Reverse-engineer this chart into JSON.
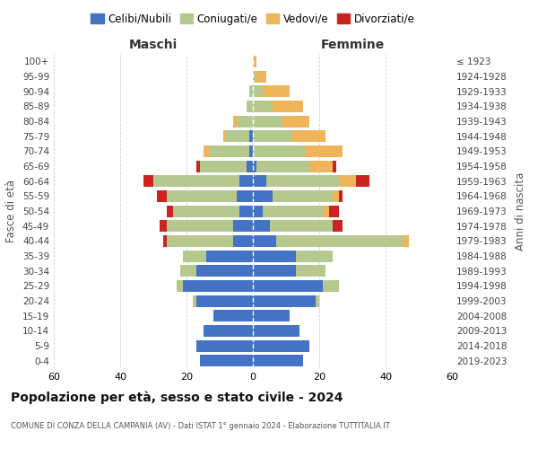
{
  "age_groups": [
    "0-4",
    "5-9",
    "10-14",
    "15-19",
    "20-24",
    "25-29",
    "30-34",
    "35-39",
    "40-44",
    "45-49",
    "50-54",
    "55-59",
    "60-64",
    "65-69",
    "70-74",
    "75-79",
    "80-84",
    "85-89",
    "90-94",
    "95-99",
    "100+"
  ],
  "birth_years": [
    "2019-2023",
    "2014-2018",
    "2009-2013",
    "2004-2008",
    "1999-2003",
    "1994-1998",
    "1989-1993",
    "1984-1988",
    "1979-1983",
    "1974-1978",
    "1969-1973",
    "1964-1968",
    "1959-1963",
    "1954-1958",
    "1949-1953",
    "1944-1948",
    "1939-1943",
    "1934-1938",
    "1929-1933",
    "1924-1928",
    "≤ 1923"
  ],
  "colors": {
    "celibi": "#4472c4",
    "coniugati": "#b5c98e",
    "vedovi": "#f0b55a",
    "divorziati": "#cc2222"
  },
  "maschi": {
    "celibi": [
      16,
      17,
      15,
      12,
      17,
      21,
      17,
      14,
      6,
      6,
      4,
      5,
      4,
      2,
      1,
      1,
      0,
      0,
      0,
      0,
      0
    ],
    "coniugati": [
      0,
      0,
      0,
      0,
      1,
      2,
      5,
      7,
      20,
      20,
      20,
      21,
      26,
      14,
      12,
      7,
      5,
      2,
      1,
      0,
      0
    ],
    "vedovi": [
      0,
      0,
      0,
      0,
      0,
      0,
      0,
      0,
      0,
      0,
      0,
      0,
      0,
      0,
      2,
      1,
      1,
      0,
      0,
      0,
      0
    ],
    "divorziati": [
      0,
      0,
      0,
      0,
      0,
      0,
      0,
      0,
      1,
      2,
      2,
      3,
      3,
      1,
      0,
      0,
      0,
      0,
      0,
      0,
      0
    ]
  },
  "femmine": {
    "celibi": [
      15,
      17,
      14,
      11,
      19,
      21,
      13,
      13,
      7,
      5,
      3,
      6,
      4,
      1,
      0,
      0,
      0,
      0,
      0,
      0,
      0
    ],
    "coniugati": [
      0,
      0,
      0,
      0,
      1,
      5,
      9,
      11,
      38,
      19,
      18,
      18,
      22,
      16,
      16,
      12,
      9,
      6,
      3,
      1,
      0
    ],
    "vedovi": [
      0,
      0,
      0,
      0,
      0,
      0,
      0,
      0,
      2,
      0,
      2,
      2,
      5,
      7,
      11,
      10,
      8,
      9,
      8,
      3,
      1
    ],
    "divorziati": [
      0,
      0,
      0,
      0,
      0,
      0,
      0,
      0,
      0,
      3,
      3,
      1,
      4,
      1,
      0,
      0,
      0,
      0,
      0,
      0,
      0
    ]
  },
  "title": "Popolazione per età, sesso e stato civile - 2024",
  "subtitle": "COMUNE DI CONZA DELLA CAMPANIA (AV) - Dati ISTAT 1° gennaio 2024 - Elaborazione TUTTITALIA.IT",
  "xlabel_left": "Maschi",
  "xlabel_right": "Femmine",
  "ylabel_left": "Fasce di età",
  "ylabel_right": "Anni di nascita",
  "xlim": 60,
  "xticks": [
    -60,
    -40,
    -20,
    0,
    20,
    40,
    60
  ],
  "bg_color": "#ffffff",
  "grid_color": "#cccccc",
  "legend_labels": [
    "Celibi/Nubili",
    "Coniugati/e",
    "Vedovi/e",
    "Divorziati/e"
  ]
}
